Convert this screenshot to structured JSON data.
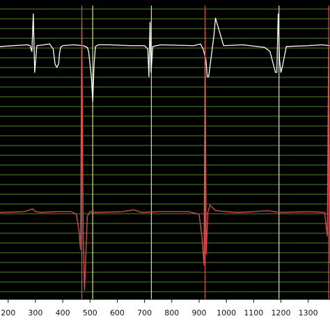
{
  "viewer": {
    "background_color": "#000000",
    "grid_color": "#3f8f1f",
    "marker_color": "#e5e07a",
    "axis_background": "#ffffff"
  },
  "chart_data": {
    "type": "line",
    "title": "",
    "xlabel": "",
    "ylabel": "",
    "grid": true,
    "xlim": [
      170,
      1380
    ],
    "ylim": [
      -1,
      1
    ],
    "x_tick_labels": [
      "200",
      "300",
      "400",
      "500",
      "600",
      "700",
      "800",
      "900",
      "1000",
      "1100",
      "1200",
      "1300"
    ],
    "x_ticks": [
      200,
      300,
      400,
      500,
      600,
      700,
      800,
      900,
      1000,
      1100,
      1200,
      1300
    ],
    "vertical_markers": [
      {
        "x": 510,
        "color": "#e5e07a"
      },
      {
        "x": 725,
        "color": "#e5e07a"
      },
      {
        "x": 470,
        "color": "#e05050"
      },
      {
        "x": 922,
        "color": "#e05050"
      },
      {
        "x": 1193,
        "color": "#e0e0e0"
      },
      {
        "x": 1375,
        "color": "#e05050"
      }
    ],
    "series": [
      {
        "color": "#ffffff",
        "x": [
          170,
          270,
          280,
          287,
          292,
          297,
          305,
          330,
          352,
          365,
          372,
          378,
          385,
          388,
          392,
          400,
          440,
          475,
          490,
          495,
          505,
          510,
          515,
          520,
          530,
          570,
          650,
          700,
          712,
          716,
          720,
          724,
          730,
          760,
          880,
          905,
          915,
          925,
          930,
          935,
          945,
          955,
          960,
          990,
          1060,
          1140,
          1160,
          1172,
          1180,
          1185,
          1190,
          1195,
          1200,
          1205,
          1220,
          1300,
          1350,
          1380
        ],
        "values": [
          0.61,
          0.63,
          0.62,
          0.55,
          1.0,
          0.3,
          0.62,
          0.63,
          0.64,
          0.58,
          0.4,
          0.36,
          0.4,
          0.52,
          0.6,
          0.62,
          0.63,
          0.62,
          0.6,
          0.55,
          0.25,
          -0.06,
          0.4,
          0.61,
          0.63,
          0.63,
          0.62,
          0.62,
          0.58,
          0.25,
          0.9,
          0.3,
          0.61,
          0.63,
          0.62,
          0.64,
          0.58,
          0.45,
          0.25,
          0.25,
          0.5,
          0.76,
          0.95,
          0.62,
          0.63,
          0.6,
          0.55,
          0.4,
          0.3,
          0.3,
          1.0,
          0.45,
          0.3,
          0.36,
          0.61,
          0.62,
          0.63,
          0.62
        ]
      },
      {
        "color": "#e05050",
        "x": [
          170,
          260,
          280,
          290,
          300,
          320,
          380,
          430,
          450,
          460,
          465,
          470,
          475,
          480,
          490,
          500,
          520,
          620,
          660,
          670,
          690,
          750,
          860,
          900,
          910,
          918,
          922,
          926,
          932,
          940,
          960,
          1040,
          1100,
          1150,
          1200,
          1300,
          1360,
          1370,
          1375,
          1380
        ],
        "values": [
          -0.04,
          -0.03,
          -0.01,
          0.0,
          -0.03,
          -0.04,
          -0.03,
          -0.03,
          -0.06,
          -0.25,
          -0.45,
          1.0,
          -0.3,
          -0.9,
          -0.08,
          -0.03,
          -0.04,
          -0.03,
          -0.01,
          -0.02,
          -0.04,
          -0.03,
          -0.03,
          -0.06,
          -0.3,
          -0.62,
          0.97,
          -0.5,
          -0.04,
          0.02,
          -0.02,
          -0.04,
          -0.03,
          -0.02,
          -0.04,
          -0.03,
          -0.04,
          -0.3,
          0.9,
          -0.6
        ]
      }
    ]
  }
}
